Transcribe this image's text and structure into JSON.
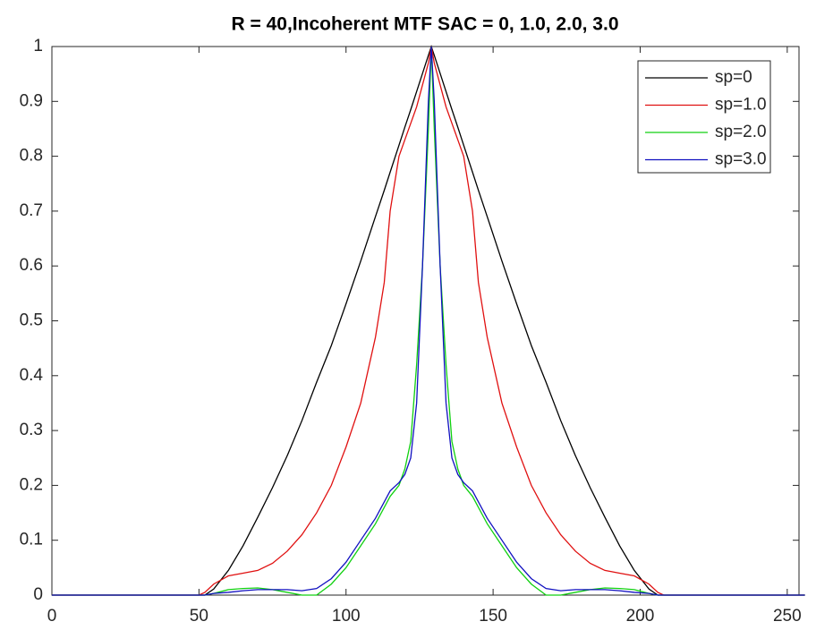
{
  "chart_data": {
    "type": "line",
    "title": "R = 40,Incoherent MTF SAC = 0, 1.0, 2.0, 3.0",
    "x": [
      0,
      50,
      52,
      55,
      60,
      65,
      70,
      75,
      80,
      85,
      90,
      95,
      100,
      105,
      110,
      113,
      115,
      118,
      120,
      122,
      124,
      126,
      128,
      129,
      130,
      132,
      134,
      136,
      138,
      140,
      143,
      145,
      148,
      153,
      158,
      163,
      168,
      173,
      178,
      183,
      188,
      193,
      198,
      203,
      206,
      208,
      256
    ],
    "series": [
      {
        "name": "sp=0",
        "color": "#000000",
        "values": [
          0,
          0,
          0,
          0.011,
          0.045,
          0.09,
          0.142,
          0.196,
          0.254,
          0.318,
          0.388,
          0.455,
          0.531,
          0.609,
          0.69,
          0.738,
          0.771,
          0.82,
          0.853,
          0.885,
          0.918,
          0.951,
          0.984,
          1,
          0.984,
          0.951,
          0.918,
          0.885,
          0.853,
          0.82,
          0.771,
          0.738,
          0.69,
          0.609,
          0.531,
          0.455,
          0.388,
          0.318,
          0.254,
          0.196,
          0.142,
          0.09,
          0.045,
          0.011,
          0,
          0,
          0
        ]
      },
      {
        "name": "sp=1.0",
        "color": "#e01010",
        "values": [
          0,
          0,
          0.005,
          0.02,
          0.035,
          0.04,
          0.045,
          0.058,
          0.08,
          0.11,
          0.15,
          0.2,
          0.27,
          0.35,
          0.47,
          0.57,
          0.7,
          0.8,
          0.83,
          0.86,
          0.89,
          0.93,
          0.97,
          1,
          0.97,
          0.93,
          0.89,
          0.86,
          0.83,
          0.8,
          0.7,
          0.57,
          0.47,
          0.35,
          0.27,
          0.2,
          0.15,
          0.11,
          0.08,
          0.058,
          0.045,
          0.04,
          0.035,
          0.02,
          0.005,
          0,
          0
        ]
      },
      {
        "name": "sp=2.0",
        "color": "#10d010",
        "values": [
          0,
          0,
          0,
          0.003,
          0.01,
          0.012,
          0.013,
          0.01,
          0.005,
          0,
          0,
          0.02,
          0.05,
          0.09,
          0.13,
          0.16,
          0.18,
          0.2,
          0.23,
          0.28,
          0.42,
          0.6,
          0.85,
          1,
          0.85,
          0.6,
          0.42,
          0.28,
          0.23,
          0.2,
          0.18,
          0.16,
          0.13,
          0.09,
          0.05,
          0.02,
          0,
          0,
          0.005,
          0.01,
          0.013,
          0.012,
          0.01,
          0.003,
          0,
          0,
          0
        ]
      },
      {
        "name": "sp=3.0",
        "color": "#1010c0",
        "values": [
          0,
          0,
          0,
          0.003,
          0.005,
          0.008,
          0.01,
          0.01,
          0.01,
          0.008,
          0.012,
          0.03,
          0.06,
          0.1,
          0.14,
          0.17,
          0.19,
          0.205,
          0.22,
          0.25,
          0.35,
          0.6,
          0.9,
          1,
          0.9,
          0.6,
          0.35,
          0.25,
          0.22,
          0.205,
          0.19,
          0.17,
          0.14,
          0.1,
          0.06,
          0.03,
          0.012,
          0.008,
          0.01,
          0.01,
          0.01,
          0.008,
          0.005,
          0.003,
          0,
          0,
          0
        ]
      }
    ],
    "xlim": [
      0,
      254
    ],
    "ylim": [
      0,
      1
    ],
    "xticks": [
      0,
      50,
      100,
      150,
      200,
      250
    ],
    "yticks": [
      0,
      0.1,
      0.2,
      0.3,
      0.4,
      0.5,
      0.6,
      0.7,
      0.8,
      0.9,
      1
    ],
    "legend": "upper right",
    "grid": false
  }
}
